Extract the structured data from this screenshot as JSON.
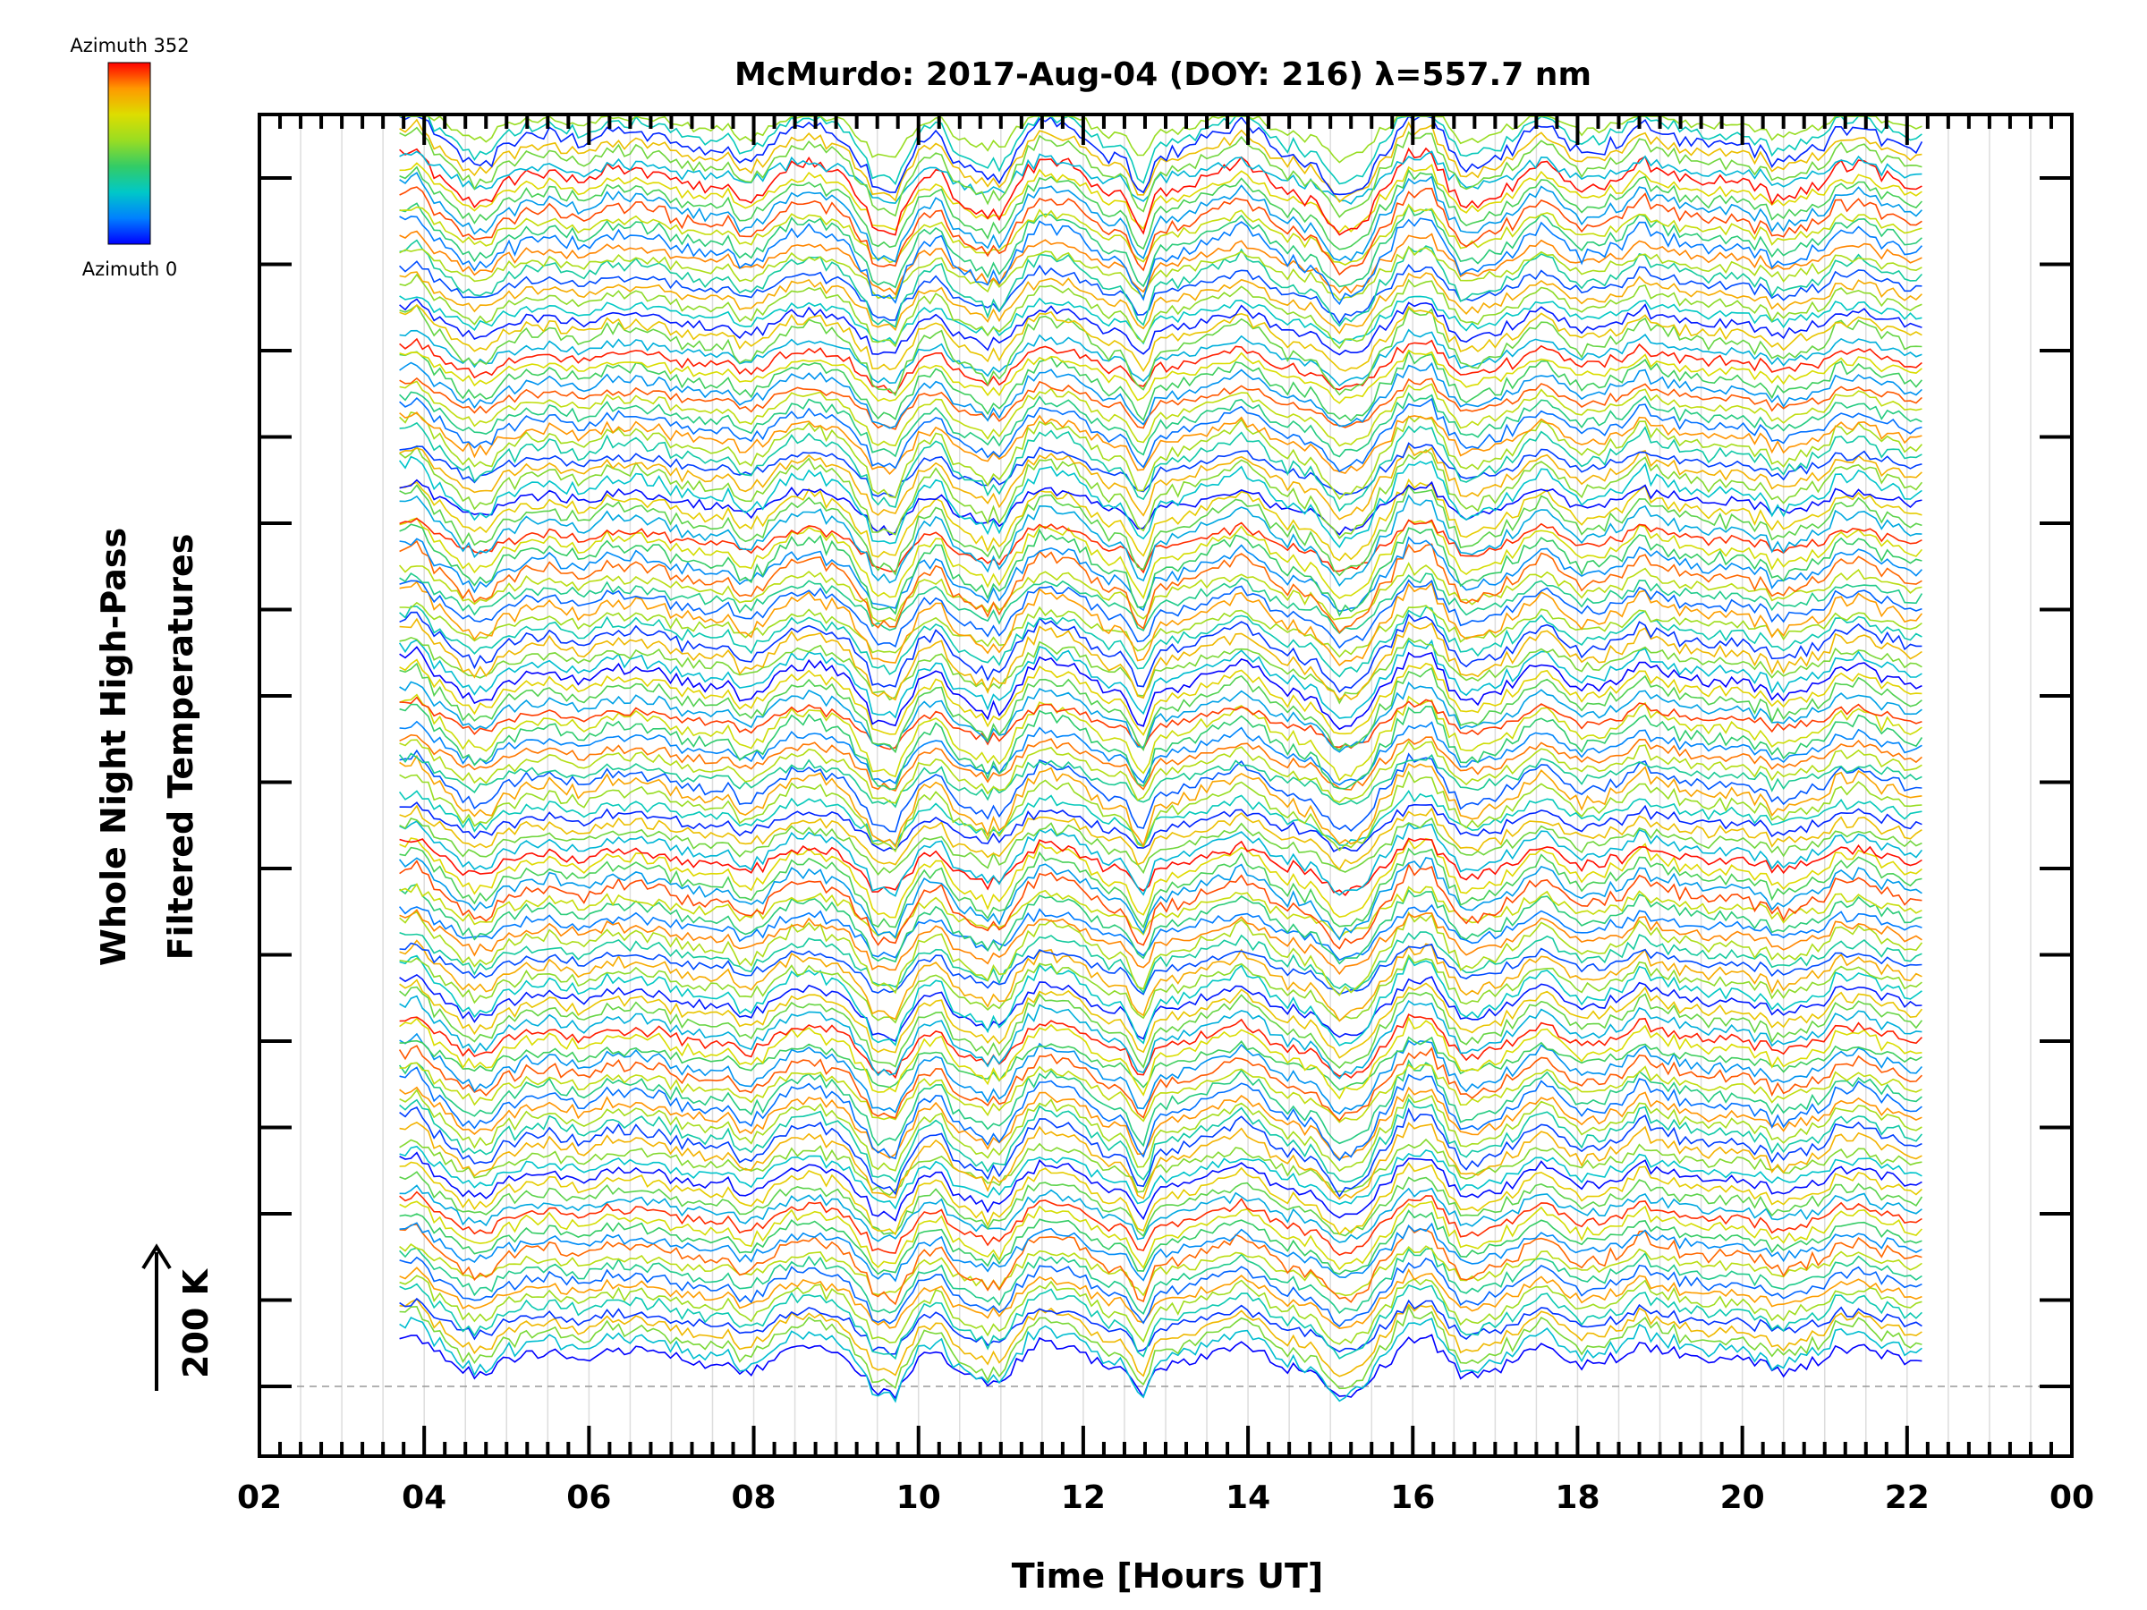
{
  "chart_data": {
    "type": "line",
    "title": "McMurdo: 2017-Aug-04 (DOY: 216) λ=557.7 nm",
    "xlabel": "Time [Hours UT]",
    "ylabel_line1": "Whole Night High-Pass",
    "ylabel_line2": "Filtered Temperatures",
    "x_range_hours": [
      2,
      24
    ],
    "x_tick_labels": [
      "02",
      "04",
      "06",
      "08",
      "10",
      "12",
      "14",
      "16",
      "18",
      "20",
      "22",
      "00"
    ],
    "data_start_hour": 3.7,
    "data_end_hour": 22.2,
    "scale_bar_label": "200 K",
    "colorbar": {
      "top_label": "Azimuth 352",
      "bottom_label": "Azimuth 0",
      "colors": [
        "#0000ff",
        "#0080ff",
        "#00c8c8",
        "#33cc66",
        "#99dd22",
        "#dddd00",
        "#ff9900",
        "#ff0000"
      ]
    },
    "series_count": 132,
    "azimuth_range": [
      0,
      352
    ],
    "stacked_offset": true,
    "dips_hours": [
      8.0,
      9.6,
      10.5,
      11.0,
      12.7,
      15.2,
      16.6
    ],
    "peaks_hours": [
      3.8,
      7.0,
      8.2,
      10.3,
      11.8,
      16.0,
      17.6
    ]
  }
}
